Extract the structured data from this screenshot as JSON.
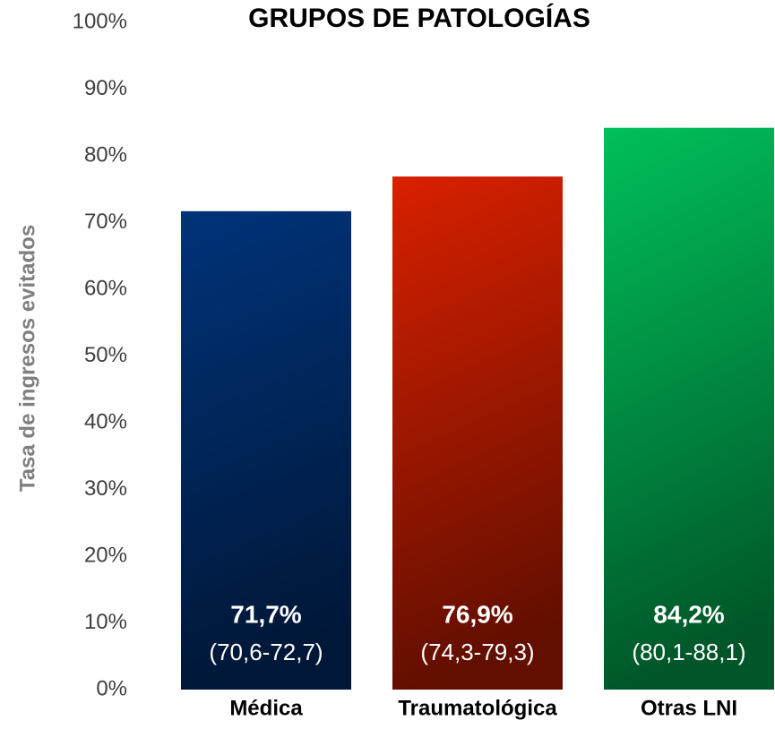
{
  "chart_data": {
    "type": "bar",
    "title": "GRUPOS DE PATOLOGÍAS",
    "y_label": "Tasa de ingresos evitados",
    "categories": [
      "Médica",
      "Traumatológica",
      "Otras LNI"
    ],
    "values": [
      71.7,
      76.9,
      84.2
    ],
    "value_labels": [
      "71,7%",
      "76,9%",
      "84,2%"
    ],
    "ci_labels": [
      "(70,6-72,7)",
      "(74,3-79,3)",
      "(80,1-88,1)"
    ],
    "colors": [
      "#00337a",
      "#d92000",
      "#00c05a"
    ],
    "ylim": [
      0,
      100
    ],
    "yticks": [
      {
        "value": 0,
        "label": "0%"
      },
      {
        "value": 10,
        "label": "10%"
      },
      {
        "value": 20,
        "label": "20%"
      },
      {
        "value": 30,
        "label": "30%"
      },
      {
        "value": 40,
        "label": "40%"
      },
      {
        "value": 50,
        "label": "50%"
      },
      {
        "value": 60,
        "label": "60%"
      },
      {
        "value": 70,
        "label": "70%"
      },
      {
        "value": 80,
        "label": "80%"
      },
      {
        "value": 90,
        "label": "90%"
      },
      {
        "value": 100,
        "label": "100%"
      }
    ],
    "grid": false
  }
}
